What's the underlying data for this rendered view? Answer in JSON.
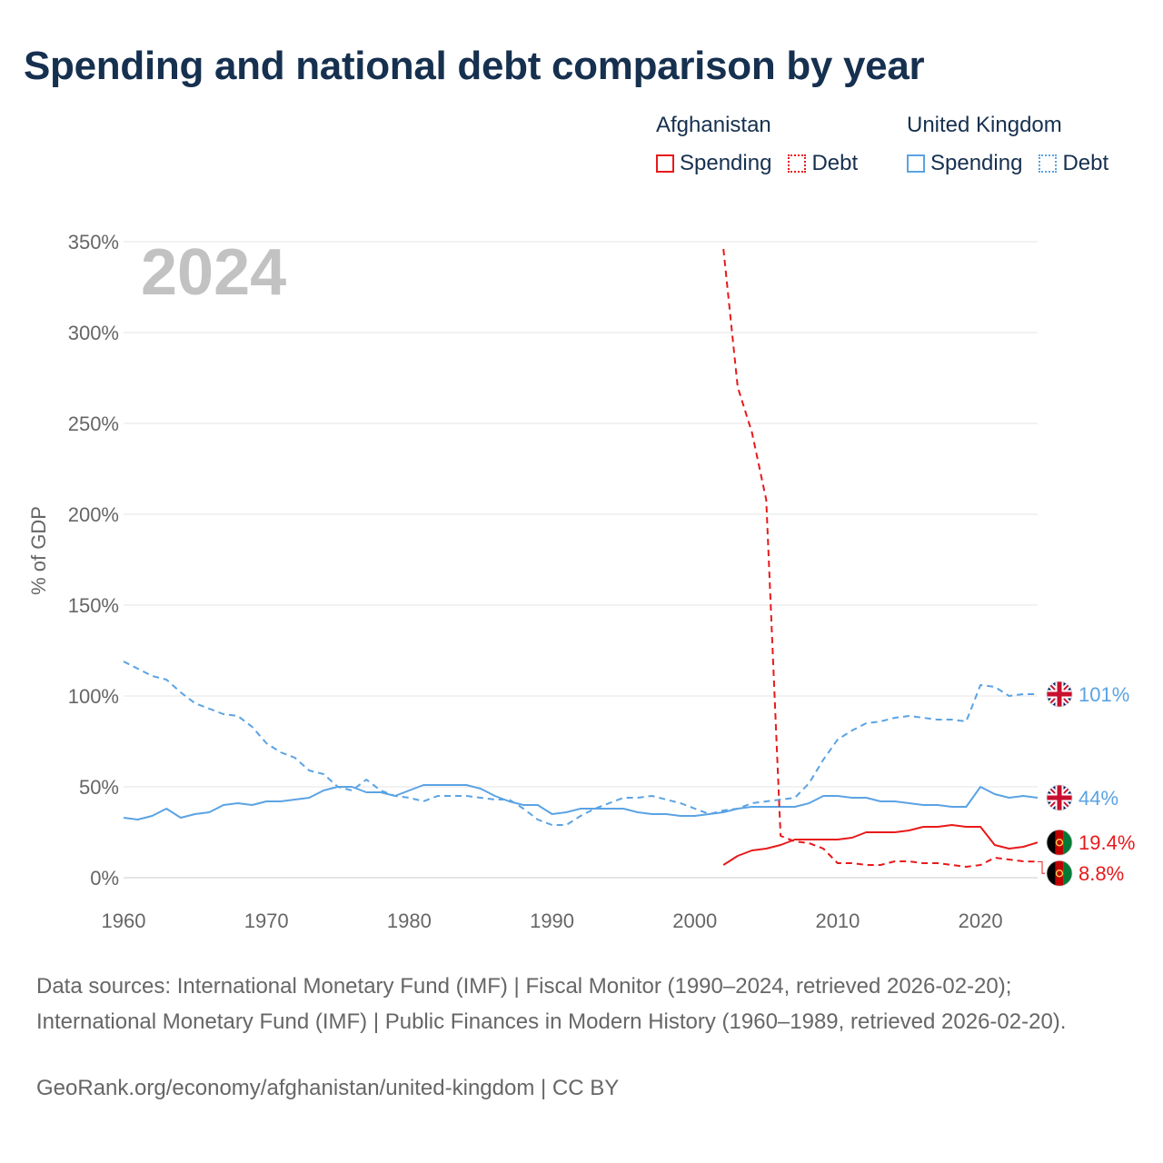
{
  "title": "Spending and national debt comparison by year",
  "legend": {
    "groups": [
      {
        "country": "Afghanistan",
        "spending_label": "Spending",
        "debt_label": "Debt",
        "color": "#e8191a"
      },
      {
        "country": "United Kingdom",
        "spending_label": "Spending",
        "debt_label": "Debt",
        "color": "#5ba3e3"
      }
    ]
  },
  "footer": {
    "sources": "Data sources: International Monetary Fund (IMF) | Fiscal Monitor (1990–2024, retrieved 2026-02-20); International Monetary Fund (IMF) | Public Finances in Modern History (1960–1989, retrieved 2026-02-20).",
    "credit": "GeoRank.org/economy/afghanistan/united-kingdom | CC BY"
  },
  "chart_data": {
    "type": "line",
    "year_watermark": "2024",
    "ylabel": "% of GDP",
    "xlim": [
      1960,
      2024
    ],
    "ylim": [
      0,
      350
    ],
    "x_ticks": [
      1960,
      1970,
      1980,
      1990,
      2000,
      2010,
      2020
    ],
    "y_ticks": [
      0,
      50,
      100,
      150,
      200,
      250,
      300,
      350
    ],
    "y_tick_labels": [
      "0%",
      "50%",
      "100%",
      "150%",
      "200%",
      "250%",
      "300%",
      "350%"
    ],
    "grid": true,
    "series": [
      {
        "name": "United Kingdom Debt",
        "country": "United Kingdom",
        "metric": "Debt",
        "color": "#5ba3e3",
        "dash": "dashed",
        "end_label": "101%",
        "flag": "uk",
        "x": [
          1960,
          1961,
          1962,
          1963,
          1964,
          1965,
          1966,
          1967,
          1968,
          1969,
          1970,
          1971,
          1972,
          1973,
          1974,
          1975,
          1976,
          1977,
          1978,
          1979,
          1980,
          1981,
          1982,
          1983,
          1984,
          1985,
          1986,
          1987,
          1988,
          1989,
          1990,
          1991,
          1992,
          1993,
          1994,
          1995,
          1996,
          1997,
          1998,
          1999,
          2000,
          2001,
          2002,
          2003,
          2004,
          2005,
          2006,
          2007,
          2008,
          2009,
          2010,
          2011,
          2012,
          2013,
          2014,
          2015,
          2016,
          2017,
          2018,
          2019,
          2020,
          2021,
          2022,
          2023,
          2024
        ],
        "y": [
          119,
          115,
          111,
          109,
          102,
          96,
          93,
          90,
          89,
          83,
          74,
          69,
          66,
          59,
          57,
          50,
          48,
          54,
          48,
          45,
          44,
          42,
          45,
          45,
          45,
          44,
          43,
          43,
          38,
          32,
          29,
          29,
          34,
          38,
          41,
          44,
          44,
          45,
          43,
          41,
          38,
          35,
          37,
          38,
          41,
          42,
          43,
          44,
          52,
          65,
          76,
          81,
          85,
          86,
          88,
          89,
          88,
          87,
          87,
          86,
          106,
          105,
          100,
          101,
          101
        ]
      },
      {
        "name": "United Kingdom Spending",
        "country": "United Kingdom",
        "metric": "Spending",
        "color": "#5ba3e3",
        "dash": "solid",
        "end_label": "44%",
        "flag": "uk",
        "x": [
          1960,
          1961,
          1962,
          1963,
          1964,
          1965,
          1966,
          1967,
          1968,
          1969,
          1970,
          1971,
          1972,
          1973,
          1974,
          1975,
          1976,
          1977,
          1978,
          1979,
          1980,
          1981,
          1982,
          1983,
          1984,
          1985,
          1986,
          1987,
          1988,
          1989,
          1990,
          1991,
          1992,
          1993,
          1994,
          1995,
          1996,
          1997,
          1998,
          1999,
          2000,
          2001,
          2002,
          2003,
          2004,
          2005,
          2006,
          2007,
          2008,
          2009,
          2010,
          2011,
          2012,
          2013,
          2014,
          2015,
          2016,
          2017,
          2018,
          2019,
          2020,
          2021,
          2022,
          2023,
          2024
        ],
        "y": [
          33,
          32,
          34,
          38,
          33,
          35,
          36,
          40,
          41,
          40,
          42,
          42,
          43,
          44,
          48,
          50,
          50,
          47,
          47,
          45,
          48,
          51,
          51,
          51,
          51,
          49,
          45,
          42,
          40,
          40,
          35,
          36,
          38,
          38,
          38,
          38,
          36,
          35,
          35,
          34,
          34,
          35,
          36,
          38,
          39,
          39,
          39,
          39,
          41,
          45,
          45,
          44,
          44,
          42,
          42,
          41,
          40,
          40,
          39,
          39,
          50,
          46,
          44,
          45,
          44
        ]
      },
      {
        "name": "Afghanistan Spending",
        "country": "Afghanistan",
        "metric": "Spending",
        "color": "#e8191a",
        "dash": "solid",
        "end_label": "19.4%",
        "flag": "af",
        "x": [
          2002,
          2003,
          2004,
          2005,
          2006,
          2007,
          2008,
          2009,
          2010,
          2011,
          2012,
          2013,
          2014,
          2015,
          2016,
          2017,
          2018,
          2019,
          2020,
          2021,
          2022,
          2023,
          2024
        ],
        "y": [
          7,
          12,
          15,
          16,
          18,
          21,
          21,
          21,
          21,
          22,
          25,
          25,
          25,
          26,
          28,
          28,
          29,
          28,
          28,
          18,
          16,
          17,
          19.4
        ]
      },
      {
        "name": "Afghanistan Debt",
        "country": "Afghanistan",
        "metric": "Debt",
        "color": "#e8191a",
        "dash": "dashed",
        "end_label": "8.8%",
        "flag": "af",
        "x": [
          2002,
          2003,
          2004,
          2005,
          2006,
          2007,
          2008,
          2009,
          2010,
          2011,
          2012,
          2013,
          2014,
          2015,
          2016,
          2017,
          2018,
          2019,
          2020,
          2021,
          2022,
          2023,
          2024
        ],
        "y": [
          346,
          270,
          245,
          208,
          23,
          20,
          19,
          16,
          8,
          8,
          7,
          7,
          9,
          9,
          8,
          8,
          7,
          6,
          7,
          11,
          10,
          9,
          8.8
        ]
      }
    ]
  }
}
